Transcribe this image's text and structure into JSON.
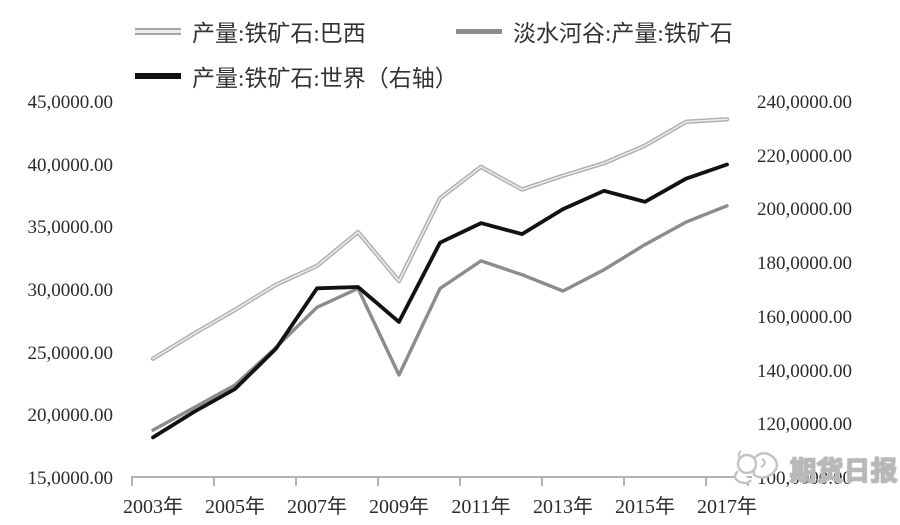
{
  "chart_data": {
    "type": "line",
    "title": "",
    "grid": false,
    "legend_position": "top-left",
    "x_years": [
      2003,
      2004,
      2005,
      2006,
      2007,
      2008,
      2009,
      2010,
      2011,
      2012,
      2013,
      2014,
      2015,
      2016,
      2017
    ],
    "x_tick_labels": [
      "2003年",
      "2005年",
      "2007年",
      "2009年",
      "2011年",
      "2013年",
      "2015年",
      "2017年"
    ],
    "axes": {
      "left": {
        "min": 150000,
        "max": 450000,
        "tick_labels": [
          "45,0000.00",
          "40,0000.00",
          "35,0000.00",
          "30,0000.00",
          "25,0000.00",
          "20,0000.00",
          "15,0000.00"
        ]
      },
      "right": {
        "min": 1000000,
        "max": 2400000,
        "tick_labels": [
          "240,0000.00",
          "220,0000.00",
          "200,0000.00",
          "180,0000.00",
          "160,0000.00",
          "140,0000.00",
          "120,0000.00",
          "100,0000.00"
        ]
      }
    },
    "series": [
      {
        "id": "brazil",
        "name": "产量:铁矿石:巴西",
        "axis": "left",
        "color": "#b0b0b0",
        "core_color": "#ededed",
        "values": [
          246000,
          266000,
          285000,
          305000,
          320000,
          347000,
          308000,
          374000,
          399000,
          381000,
          392000,
          402000,
          416000,
          435000,
          437000
        ]
      },
      {
        "id": "vale",
        "name": "淡水河谷:产量:铁矿石",
        "axis": "left",
        "color": "#8c8c8c",
        "values": [
          189000,
          207000,
          225000,
          255000,
          287000,
          302000,
          233000,
          302000,
          324000,
          313000,
          300000,
          317000,
          337000,
          355000,
          368000
        ]
      },
      {
        "id": "world",
        "name": "产量:铁矿石:世界（右轴）",
        "axis": "right",
        "color": "#121212",
        "values": [
          1155000,
          1250000,
          1335000,
          1485000,
          1710000,
          1715000,
          1585000,
          1880000,
          1953000,
          1912000,
          2005000,
          2073000,
          2032000,
          2118000,
          2171000
        ]
      }
    ]
  },
  "watermark": {
    "text": "期货日报"
  },
  "colors": {
    "background": "#ffffff",
    "axis": "#b3b3b3",
    "tick_text": "#2b2b2b",
    "legend_text": "#333333",
    "watermark_outline": "#b8b8b8"
  }
}
